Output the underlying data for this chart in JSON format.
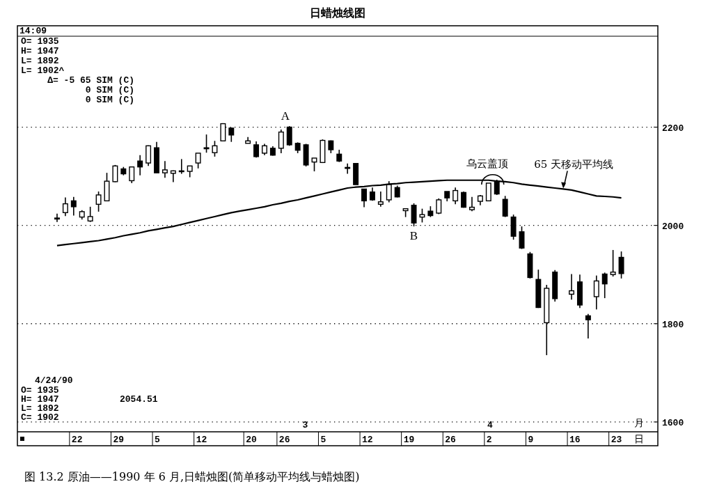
{
  "chart_data": {
    "type": "candlestick",
    "title": "日蜡烛线图",
    "xlabel": "日",
    "categories": [
      null,
      null,
      "22",
      null,
      null,
      null,
      null,
      "29",
      null,
      null,
      null,
      null,
      "5",
      null,
      null,
      null,
      null,
      "12",
      null,
      null,
      null,
      null,
      null,
      "20",
      null,
      null,
      null,
      "26",
      null,
      null,
      null,
      null,
      "5",
      null,
      null,
      null,
      null,
      "12",
      null,
      null,
      null,
      null,
      "19",
      null,
      null,
      null,
      null,
      "26",
      null,
      null,
      null,
      null,
      "2",
      null,
      null,
      null,
      null,
      "9",
      null,
      null,
      null,
      null,
      "16",
      null,
      null,
      null,
      null,
      "23",
      null
    ],
    "ohlc": [
      [
        2013,
        2024,
        2007,
        2015
      ],
      [
        2026,
        2057,
        2019,
        2044
      ],
      [
        2050,
        2058,
        2020,
        2038
      ],
      [
        2017,
        2031,
        2012,
        2028
      ],
      [
        2009,
        2038,
        2007,
        2018
      ],
      [
        2043,
        2069,
        2028,
        2062
      ],
      [
        2050,
        2107,
        2050,
        2090
      ],
      [
        2089,
        2123,
        2088,
        2121
      ],
      [
        2115,
        2119,
        2102,
        2105
      ],
      [
        2091,
        2120,
        2086,
        2119
      ],
      [
        2131,
        2143,
        2102,
        2119
      ],
      [
        2127,
        2163,
        2121,
        2162
      ],
      [
        2158,
        2170,
        2107,
        2107
      ],
      [
        2107,
        2131,
        2097,
        2113
      ],
      [
        2106,
        2112,
        2088,
        2111
      ],
      [
        2110,
        2135,
        2105,
        2111
      ],
      [
        2110,
        2121,
        2098,
        2121
      ],
      [
        2127,
        2147,
        2116,
        2147
      ],
      [
        2156,
        2185,
        2148,
        2158
      ],
      [
        2148,
        2172,
        2140,
        2162
      ],
      [
        2172,
        2208,
        2171,
        2207
      ],
      [
        2198,
        2199,
        2170,
        2184
      ],
      null,
      [
        2167,
        2180,
        2167,
        2172
      ],
      [
        2164,
        2171,
        2138,
        2140
      ],
      [
        2147,
        2166,
        2143,
        2162
      ],
      [
        2157,
        2161,
        2142,
        2143
      ],
      [
        2157,
        2195,
        2147,
        2190
      ],
      [
        2200,
        2202,
        2162,
        2164
      ],
      [
        2167,
        2169,
        2147,
        2153
      ],
      [
        2164,
        2166,
        2120,
        2123
      ],
      [
        2129,
        2137,
        2110,
        2137
      ],
      [
        2128,
        2175,
        2127,
        2173
      ],
      [
        2172,
        2173,
        2147,
        2154
      ],
      [
        2145,
        2154,
        2129,
        2131
      ],
      [
        2118,
        2126,
        2105,
        2116
      ],
      [
        2126,
        2126,
        2083,
        2083
      ],
      [
        2074,
        2074,
        2037,
        2050
      ],
      [
        2068,
        2077,
        2050,
        2052
      ],
      [
        2043,
        2069,
        2038,
        2048
      ],
      [
        2052,
        2090,
        2047,
        2083
      ],
      [
        2077,
        2081,
        2057,
        2058
      ],
      [
        2030,
        2034,
        2017,
        2034
      ],
      [
        2041,
        2045,
        1998,
        2005
      ],
      [
        2017,
        2034,
        2006,
        2022
      ],
      [
        2029,
        2039,
        2017,
        2020
      ],
      [
        2025,
        2055,
        2023,
        2052
      ],
      [
        2069,
        2069,
        2049,
        2056
      ],
      [
        2050,
        2077,
        2043,
        2071
      ],
      [
        2067,
        2069,
        2036,
        2037
      ],
      [
        2032,
        2058,
        2029,
        2037
      ],
      [
        2049,
        2062,
        2041,
        2060
      ],
      [
        2050,
        2086,
        2050,
        2086
      ],
      [
        2090,
        2093,
        2062,
        2064
      ],
      [
        2053,
        2060,
        2017,
        2019
      ],
      [
        2017,
        2022,
        1971,
        1978
      ],
      [
        1987,
        1998,
        1952,
        1954
      ],
      [
        1942,
        1946,
        1892,
        1894
      ],
      [
        1890,
        1910,
        1832,
        1833
      ],
      [
        1802,
        1879,
        1736,
        1872
      ],
      [
        1905,
        1909,
        1845,
        1851
      ],
      null,
      [
        1860,
        1901,
        1849,
        1867
      ],
      [
        1885,
        1900,
        1832,
        1838
      ],
      [
        1816,
        1820,
        1770,
        1808
      ],
      [
        1855,
        1898,
        1829,
        1887
      ],
      [
        1901,
        1904,
        1852,
        1881
      ],
      [
        1900,
        1950,
        1896,
        1905
      ],
      [
        1935,
        1947,
        1892,
        1902
      ]
    ],
    "series": [
      {
        "type": "line",
        "name": "65 天移动平均线",
        "color": "#000000",
        "values": [
          1959,
          1961,
          1963,
          1965,
          1967,
          1969,
          1972,
          1975,
          1979,
          1982,
          1985,
          1989,
          1992,
          1995,
          1998,
          2002,
          2006,
          2010,
          2014,
          2018,
          2022,
          2026,
          2029,
          2032,
          2035,
          2038,
          2042,
          2045,
          2049,
          2052,
          2056,
          2060,
          2064,
          2068,
          2072,
          2076,
          2078,
          2079,
          2081,
          2082,
          2084,
          2085,
          2087,
          2088,
          2089,
          2090,
          2091,
          2092,
          2092,
          2092,
          2092,
          2092,
          2092,
          2090,
          2089,
          2087,
          2084,
          2082,
          2080,
          2078,
          2076,
          2074,
          2072,
          2068,
          2064,
          2060,
          2059,
          2058,
          2056
        ]
      }
    ],
    "ylim": [
      1580,
      2385
    ],
    "yticks": [
      1600,
      1800,
      2000,
      2200
    ],
    "grid": "y",
    "marker": "none",
    "line_style": "solid",
    "annotations": [
      "14:09",
      "O= 1935",
      "H= 1947",
      "L= 1892",
      "L= 1902^",
      "Δ= -5 65 SIM (C)",
      "0 SIM (C)",
      "0 SIM (C)",
      "4/24/90",
      "O= 1935",
      "H= 1947",
      "L= 1892",
      "C= 1902",
      "2054.51",
      "A",
      "B",
      "乌云盖顶",
      "3",
      "4",
      "月",
      "图 13.2  原油——1990 年 6 月,日蜡烛图(简单移动平均线与蜡烛图)"
    ]
  }
}
